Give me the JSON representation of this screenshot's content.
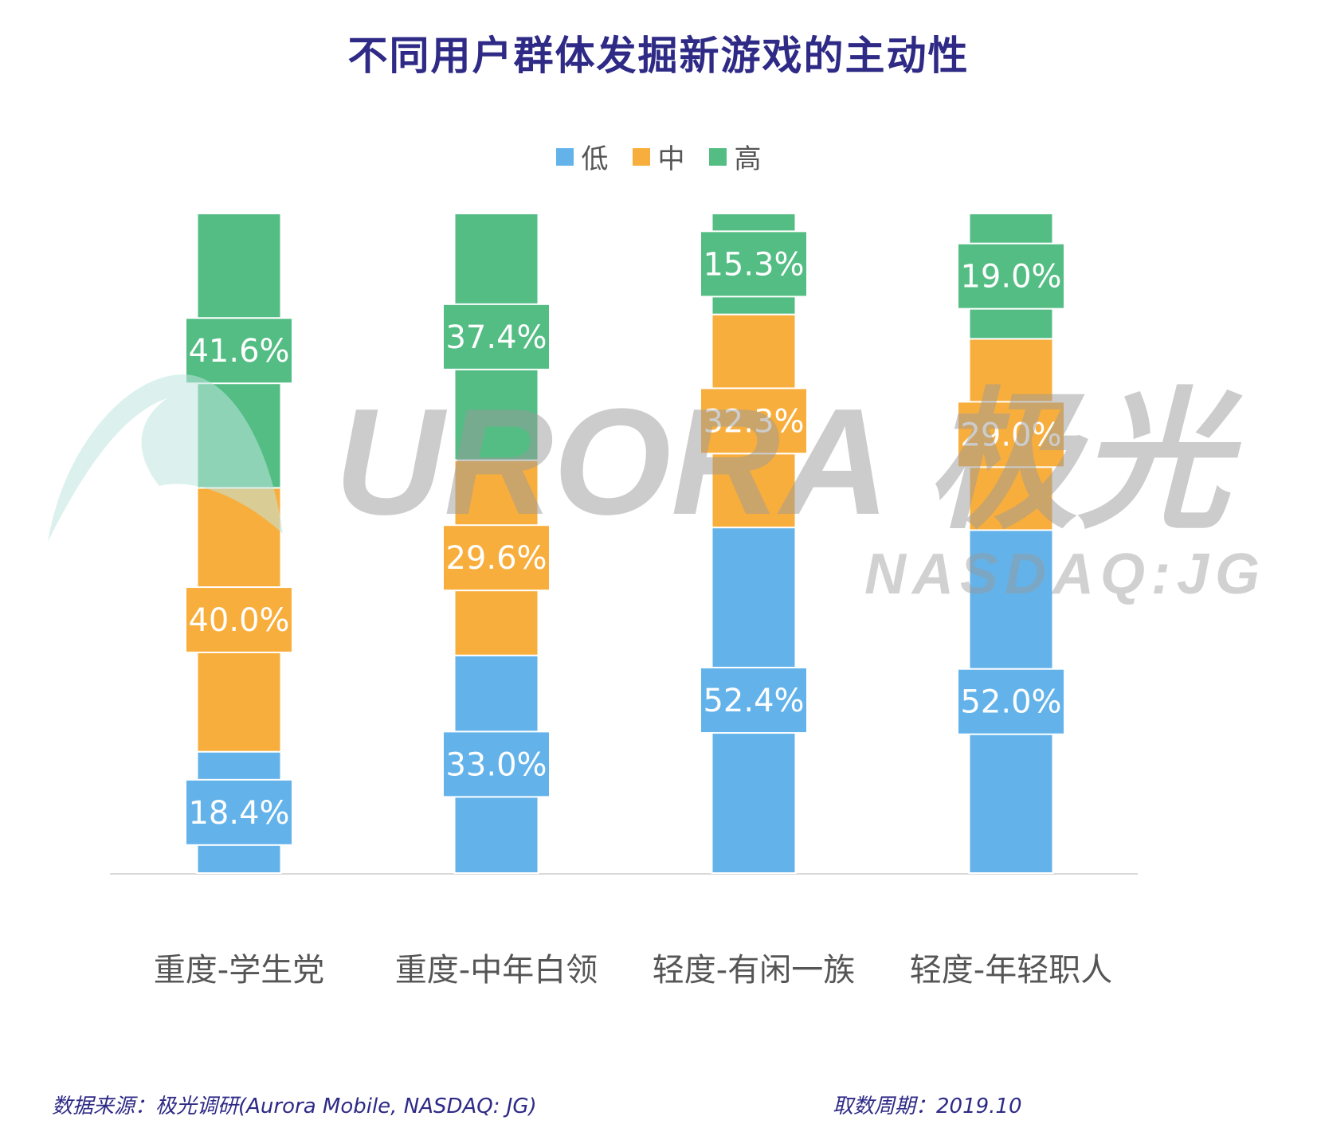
{
  "title": "不同用户群体发掘新游戏的主动性",
  "legend": [
    {
      "label": "低",
      "color": "#63b3ea"
    },
    {
      "label": "中",
      "color": "#f8ae3c"
    },
    {
      "label": "高",
      "color": "#53bd84"
    }
  ],
  "watermark": {
    "brand": "URORA 极光",
    "ticker": "NASDAQ:JG"
  },
  "footer": {
    "source": "数据来源：极光调研(Aurora Mobile, NASDAQ: JG)",
    "period": "取数周期：2019.10"
  },
  "chart_data": {
    "type": "bar",
    "stacked": true,
    "percent": true,
    "categories": [
      "重度-学生党",
      "重度-中年白领",
      "轻度-有闲一族",
      "轻度-年轻职人"
    ],
    "series": [
      {
        "name": "低",
        "color": "#63b3ea",
        "values": [
          18.4,
          33.0,
          52.4,
          52.0
        ]
      },
      {
        "name": "中",
        "color": "#f8ae3c",
        "values": [
          40.0,
          29.6,
          32.3,
          29.0
        ]
      },
      {
        "name": "高",
        "color": "#53bd84",
        "values": [
          41.6,
          37.4,
          15.3,
          19.0
        ]
      }
    ],
    "value_labels": [
      [
        "18.4%",
        "33.0%",
        "52.4%",
        "52.0%"
      ],
      [
        "40.0%",
        "29.6%",
        "32.3%",
        "29.0%"
      ],
      [
        "41.6%",
        "37.4%",
        "15.3%",
        "19.0%"
      ]
    ],
    "ylim": [
      0,
      100
    ],
    "grid": false,
    "legend_position": "top-center"
  }
}
